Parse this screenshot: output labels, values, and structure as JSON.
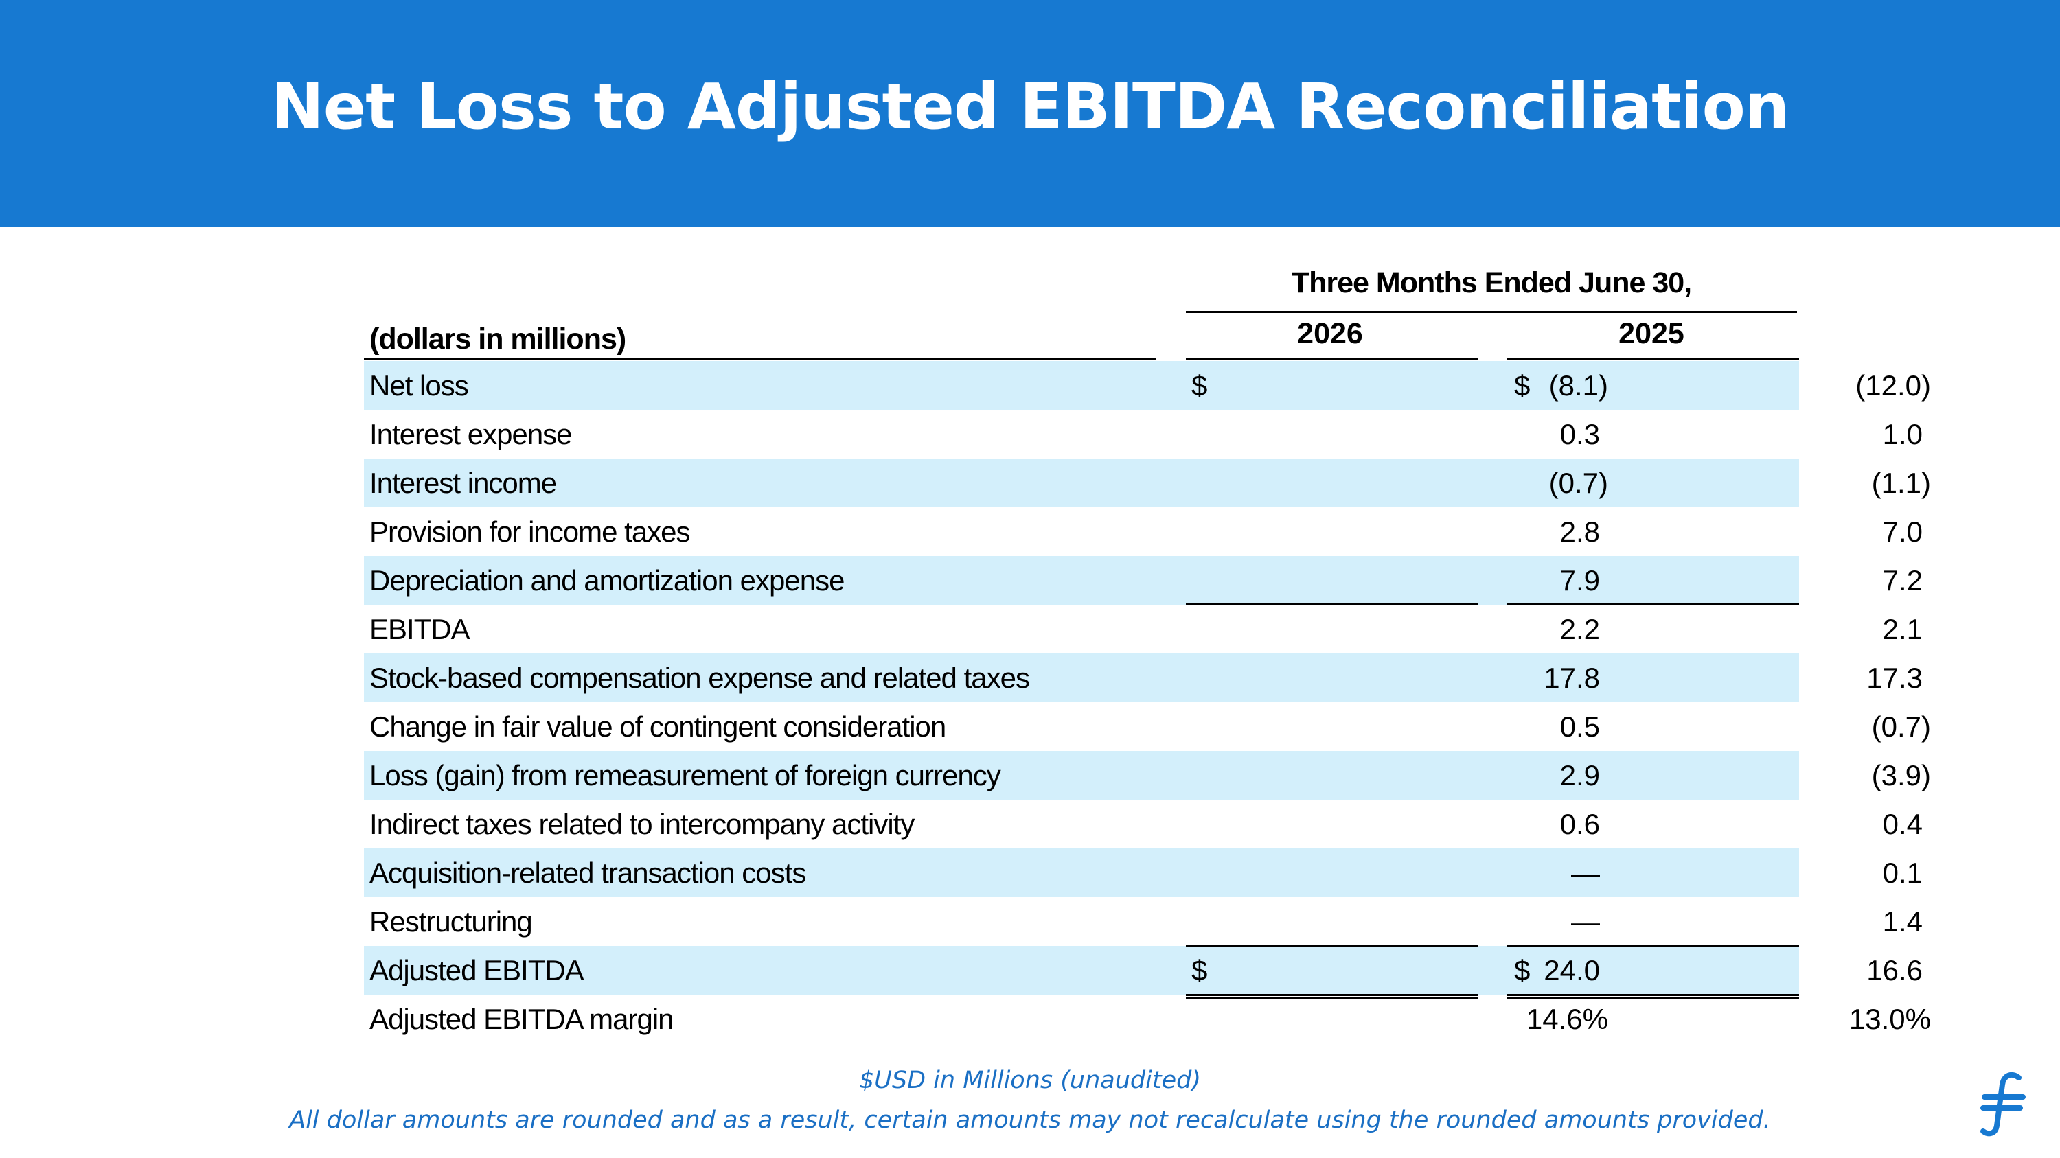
{
  "title": "Net Loss to Adjusted EBITDA Reconciliation",
  "table": {
    "period_header": "Three Months Ended June 30,",
    "label_header": "(dollars in millions)",
    "years": [
      "2026",
      "2025"
    ],
    "rows": [
      {
        "label": "Net loss",
        "cur1": "$",
        "v1": "(8.1)",
        "cur2": "$",
        "v2": "(12.0)",
        "shade": true
      },
      {
        "label": "Interest expense",
        "cur1": "",
        "v1": "0.3",
        "cur2": "",
        "v2": "1.0",
        "shade": false
      },
      {
        "label": "Interest income",
        "cur1": "",
        "v1": "(0.7)",
        "cur2": "",
        "v2": "(1.1)",
        "shade": true
      },
      {
        "label": "Provision for income taxes",
        "cur1": "",
        "v1": "2.8",
        "cur2": "",
        "v2": "7.0",
        "shade": false
      },
      {
        "label": "Depreciation and amortization expense",
        "cur1": "",
        "v1": "7.9",
        "cur2": "",
        "v2": "7.2",
        "shade": true
      },
      {
        "label": "EBITDA",
        "cur1": "",
        "v1": "2.2",
        "cur2": "",
        "v2": "2.1",
        "shade": false
      },
      {
        "label": "Stock-based compensation expense and related taxes",
        "cur1": "",
        "v1": "17.8",
        "cur2": "",
        "v2": "17.3",
        "shade": true
      },
      {
        "label": "Change in fair value of contingent consideration",
        "cur1": "",
        "v1": "0.5",
        "cur2": "",
        "v2": "(0.7)",
        "shade": false
      },
      {
        "label": "Loss (gain) from remeasurement of foreign currency",
        "cur1": "",
        "v1": "2.9",
        "cur2": "",
        "v2": "(3.9)",
        "shade": true
      },
      {
        "label": "Indirect taxes related to intercompany activity",
        "cur1": "",
        "v1": "0.6",
        "cur2": "",
        "v2": "0.4",
        "shade": false
      },
      {
        "label": "Acquisition-related transaction costs",
        "cur1": "",
        "v1": "—",
        "cur2": "",
        "v2": "0.1",
        "shade": true
      },
      {
        "label": "Restructuring",
        "cur1": "",
        "v1": "—",
        "cur2": "",
        "v2": "1.4",
        "shade": false
      },
      {
        "label": "Adjusted EBITDA",
        "cur1": "$",
        "v1": "24.0",
        "cur2": "$",
        "v2": "16.6",
        "shade": true
      },
      {
        "label": "Adjusted EBITDA margin",
        "cur1": "",
        "v1": "14.6%",
        "cur2": "",
        "v2": "13.0%",
        "shade": false
      }
    ]
  },
  "footnote": {
    "line1": "$USD in Millions (unaudited)",
    "line2": "All dollar amounts are rounded and as a result, certain amounts may not recalculate using the rounded amounts provided."
  },
  "colors": {
    "banner": "#1779d1",
    "row_shade": "#d3effb",
    "footnote": "#1a6fc4"
  },
  "logo_icon": "brand-logo-icon"
}
